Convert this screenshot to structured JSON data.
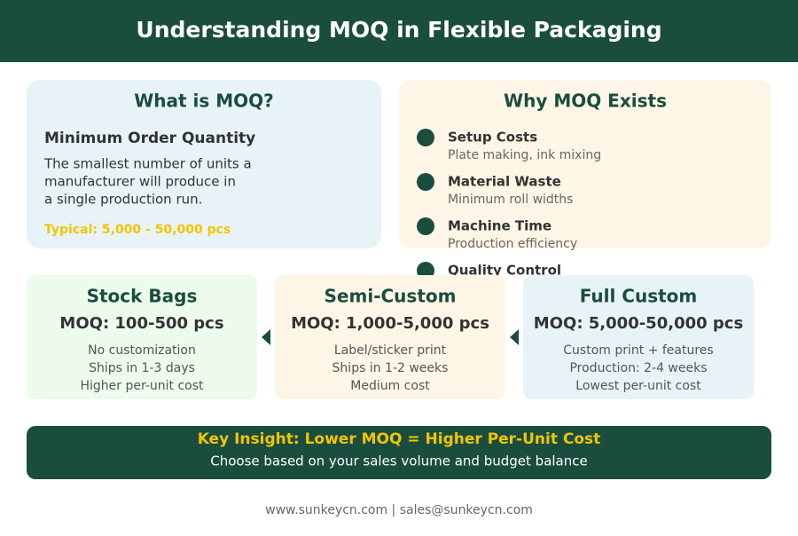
{
  "header": {
    "title": "Understanding MOQ in Flexible Packaging"
  },
  "what_is": {
    "title": "What is MOQ?",
    "subtitle": "Minimum Order Quantity",
    "lines": [
      "The smallest number of units a",
      "manufacturer will produce in",
      "a single production run."
    ],
    "typical": "Typical: 5,000 - 50,000 pcs"
  },
  "why_exists": {
    "title": "Why MOQ Exists",
    "items": [
      {
        "title": "Setup Costs",
        "desc": "Plate making, ink mixing"
      },
      {
        "title": "Material Waste",
        "desc": "Minimum roll widths"
      },
      {
        "title": "Machine Time",
        "desc": "Production efficiency"
      },
      {
        "title": "Quality Control"
      }
    ]
  },
  "tiers": [
    {
      "name": "Stock Bags",
      "moq": "MOQ: 100-500 pcs",
      "features": [
        "No customization",
        "Ships in 1-3 days",
        "Higher per-unit cost"
      ]
    },
    {
      "name": "Semi-Custom",
      "moq": "MOQ: 1,000-5,000 pcs",
      "features": [
        "Label/sticker print",
        "Ships in 1-2 weeks",
        "Medium cost"
      ]
    },
    {
      "name": "Full Custom",
      "moq": "MOQ: 5,000-50,000 pcs",
      "features": [
        "Custom print + features",
        "Production: 2-4 weeks",
        "Lowest per-unit cost"
      ]
    }
  ],
  "insight": {
    "title": "Key Insight: Lower MOQ = Higher Per-Unit Cost",
    "text": "Choose based on your sales volume and budget balance"
  },
  "footer": "www.sunkeycn.com | sales@sunkeycn.com"
}
